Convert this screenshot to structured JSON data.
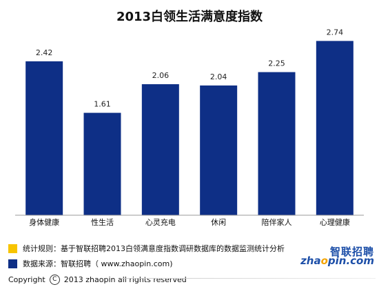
{
  "chart_data": {
    "type": "bar",
    "title": "2013白领生活满意度指数",
    "categories": [
      "身体健康",
      "性生活",
      "心灵充电",
      "休闲",
      "陪伴家人",
      "心理健康"
    ],
    "values": [
      2.42,
      1.61,
      2.06,
      2.04,
      2.25,
      2.74
    ],
    "value_labels": [
      "2.42",
      "1.61",
      "2.06",
      "2.04",
      "2.25",
      "2.74"
    ],
    "ylim": [
      0,
      2.95
    ],
    "xlabel": "",
    "ylabel": "",
    "grid": false,
    "bar_color": "#0e2f86"
  },
  "notes": {
    "rule": "统计规则：基于智联招聘2013白领满意度指数调研数据库的数据监测统计分析",
    "source": "数据来源：智联招聘（ www.zhaopin.com)",
    "rule_color": "#f7c400",
    "source_color": "#0e2f86"
  },
  "copyright": {
    "prefix": "Copyright",
    "symbol": "C",
    "text": "2013 zhaopin all rights  reserved"
  },
  "logo": {
    "cn": "智联招聘",
    "en_prefix": "zha",
    "en_o": "o",
    "en_suffix": "pin.com"
  }
}
